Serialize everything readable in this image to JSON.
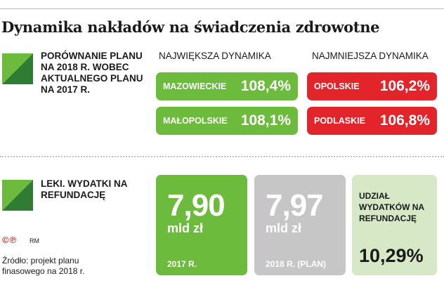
{
  "title": "Dynamika nakładów na świadczenia zdrowotne",
  "section1": {
    "label": "PORÓWNANIE PLANU NA 2018 R. WOBEC AKTUALNEGO PLANU NA 2017 R.",
    "largest_head": "NAJWIĘKSZA DYNAMIKA",
    "smallest_head": "NAJMNIEJSZA DYNAMIKA",
    "largest": [
      {
        "region": "MAZOWIECKIE",
        "value": "108,4%"
      },
      {
        "region": "MAŁOPOLSKIE",
        "value": "108,1%"
      }
    ],
    "smallest": [
      {
        "region": "OPOLSKIE",
        "value": "106,2%"
      },
      {
        "region": "PODLASKIE",
        "value": "106,8%"
      }
    ]
  },
  "section2": {
    "label": "LEKI. WYDATKI NA REFUNDACJĘ",
    "card_2017": {
      "value": "7,90",
      "unit": "mld zł",
      "foot": "2017 R."
    },
    "card_2018": {
      "value": "7,97",
      "unit": "mld zł",
      "foot": "2018 R. (PLAN)"
    },
    "share": {
      "label": "UDZIAŁ WYDATKÓW NA REFUNDACJĘ",
      "value": "10,29%"
    }
  },
  "footer": {
    "copyright": "©℗",
    "initials": "RM",
    "source": "Źródło: projekt planu finasowego na 2018 r."
  },
  "colors": {
    "green": "#6cbb3c",
    "dark_green": "#2e7d32",
    "red": "#e3242b",
    "gray": "#c6c6c6",
    "light_green": "#d7e8c6"
  }
}
